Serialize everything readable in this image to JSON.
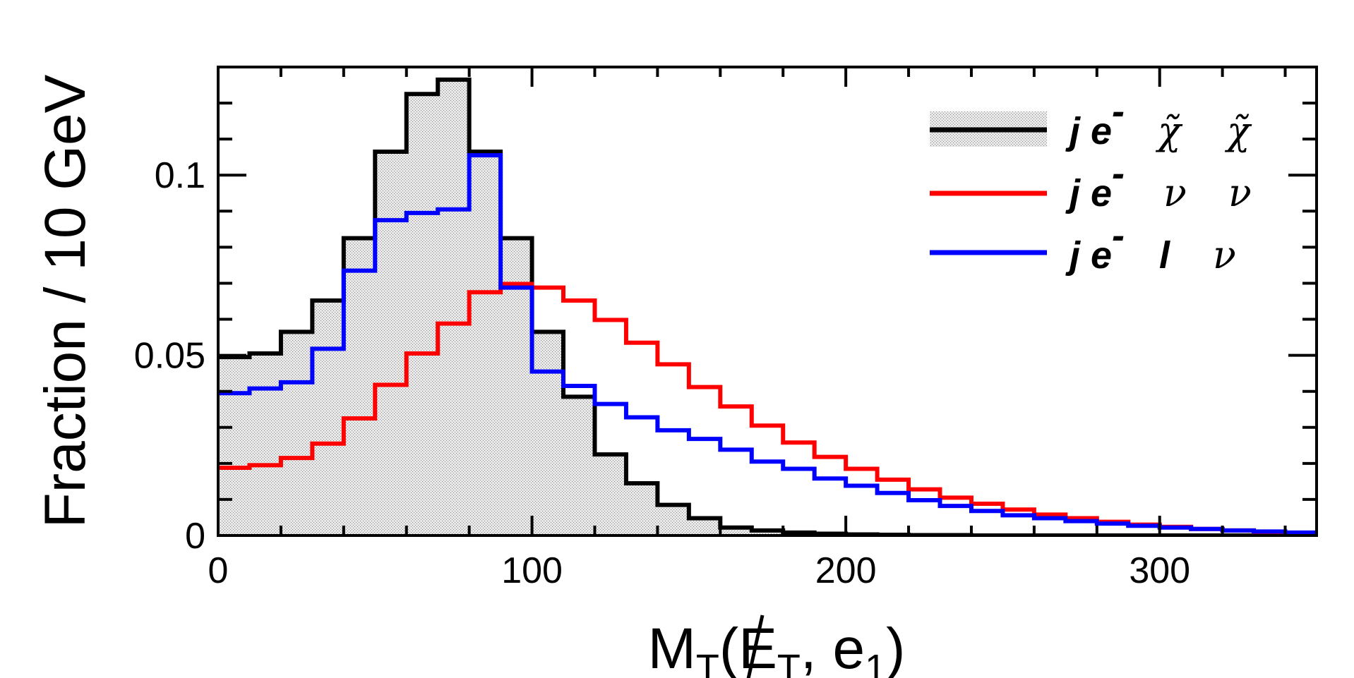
{
  "chart_data": {
    "type": "histogram",
    "title": "",
    "xlabel": {
      "main": "M",
      "sub": "T",
      "open": "(",
      "met": "E",
      "met_sub": "T",
      "sep": ", e",
      "lepton_sub": "1",
      "close": ")"
    },
    "ylabel": "Fraction / 10 GeV",
    "xlim": [
      0,
      350
    ],
    "ylim": [
      0,
      0.13
    ],
    "bin_width": 10,
    "bin_edges_start": 0,
    "x_ticks": [
      0,
      100,
      200,
      300
    ],
    "x_tick_labels": [
      "0",
      "100",
      "200",
      "300"
    ],
    "y_ticks": [
      0,
      0.05,
      0.1
    ],
    "y_tick_labels": [
      "0",
      "0.05",
      "0.1"
    ],
    "legend_position": "top-right",
    "series": [
      {
        "name": "j e- χ̃ χ̃",
        "legend": {
          "prefix": "j e",
          "sup": "-",
          "particles": [
            "χ̃",
            "χ̃"
          ]
        },
        "color": "#000000",
        "fill": "#d9d9d9",
        "filled": true,
        "values": [
          0.0495,
          0.0505,
          0.0565,
          0.0652,
          0.0825,
          0.1065,
          0.1225,
          0.1265,
          0.1065,
          0.0825,
          0.0565,
          0.0385,
          0.0225,
          0.0145,
          0.0085,
          0.0048,
          0.0022,
          0.0014,
          0.0008,
          0.0005,
          0.0003,
          0.0002,
          0.0001,
          0.0001,
          0.0,
          0.0,
          0.0,
          0.0,
          0.0,
          0.0,
          0.0,
          0.0,
          0.0,
          0.0,
          0.0
        ]
      },
      {
        "name": "j e- ν ν",
        "legend": {
          "prefix": "j e",
          "sup": "-",
          "particles": [
            "ν",
            "ν"
          ]
        },
        "color": "#ff0000",
        "filled": false,
        "values": [
          0.0188,
          0.0195,
          0.0215,
          0.0255,
          0.0325,
          0.0418,
          0.0505,
          0.0588,
          0.0675,
          0.0698,
          0.0688,
          0.0652,
          0.0598,
          0.0535,
          0.0475,
          0.0412,
          0.0358,
          0.0305,
          0.0258,
          0.0218,
          0.0185,
          0.0155,
          0.0128,
          0.0105,
          0.0088,
          0.0072,
          0.0058,
          0.0048,
          0.0038,
          0.003,
          0.0024,
          0.0018,
          0.0014,
          0.001,
          0.0007
        ]
      },
      {
        "name": "j e- l ν",
        "legend": {
          "prefix": "j e",
          "sup": "-",
          "particles": [
            "l",
            "ν"
          ]
        },
        "color": "#0000ff",
        "filled": false,
        "values": [
          0.0395,
          0.0408,
          0.0425,
          0.0518,
          0.0735,
          0.0875,
          0.0895,
          0.0905,
          0.1055,
          0.0688,
          0.0455,
          0.0415,
          0.0365,
          0.0328,
          0.0292,
          0.0268,
          0.0238,
          0.0205,
          0.0185,
          0.0158,
          0.0138,
          0.0118,
          0.0098,
          0.0082,
          0.0068,
          0.0056,
          0.0048,
          0.004,
          0.0033,
          0.0027,
          0.0022,
          0.0018,
          0.0014,
          0.0011,
          0.0008
        ]
      }
    ]
  }
}
